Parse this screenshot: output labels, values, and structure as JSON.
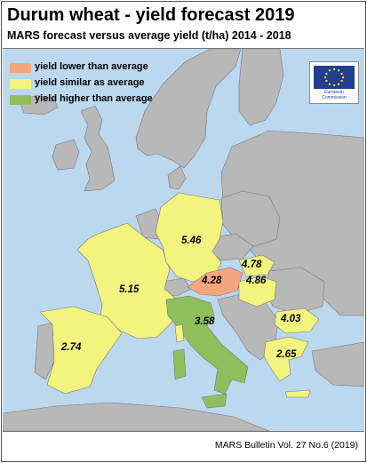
{
  "title": "Durum wheat - yield forecast 2019",
  "subtitle": "MARS forecast versus average yield (t/ha) 2014 - 2018",
  "colors": {
    "sea": "#bcd8ef",
    "lower": "#f7a57f",
    "similar": "#f2f47e",
    "higher": "#8fbf5c",
    "non_reporting": "#b8b8b8"
  },
  "legend": [
    {
      "label": "yield lower than average",
      "color": "#f7a57f"
    },
    {
      "label": "yield similar as average",
      "color": "#f2f47e"
    },
    {
      "label": "yield higher than average",
      "color": "#8fbf5c"
    }
  ],
  "logo": {
    "text": "European Commission",
    "icon": "eu-flag-icon"
  },
  "regions": [
    {
      "country": "France",
      "value": "5.15",
      "category": "similar"
    },
    {
      "country": "Germany",
      "value": "5.46",
      "category": "similar"
    },
    {
      "country": "Austria",
      "value": "4.28",
      "category": "lower"
    },
    {
      "country": "Slovakia",
      "value": "4.78",
      "category": "similar"
    },
    {
      "country": "Hungary",
      "value": "4.86",
      "category": "similar"
    },
    {
      "country": "Italy",
      "value": "3.58",
      "category": "higher"
    },
    {
      "country": "Spain",
      "value": "2.74",
      "category": "similar"
    },
    {
      "country": "Bulgaria",
      "value": "4.03",
      "category": "similar"
    },
    {
      "country": "Greece",
      "value": "2.65",
      "category": "similar"
    }
  ],
  "footer": "MARS Bulletin Vol. 27 No.6 (2019)"
}
